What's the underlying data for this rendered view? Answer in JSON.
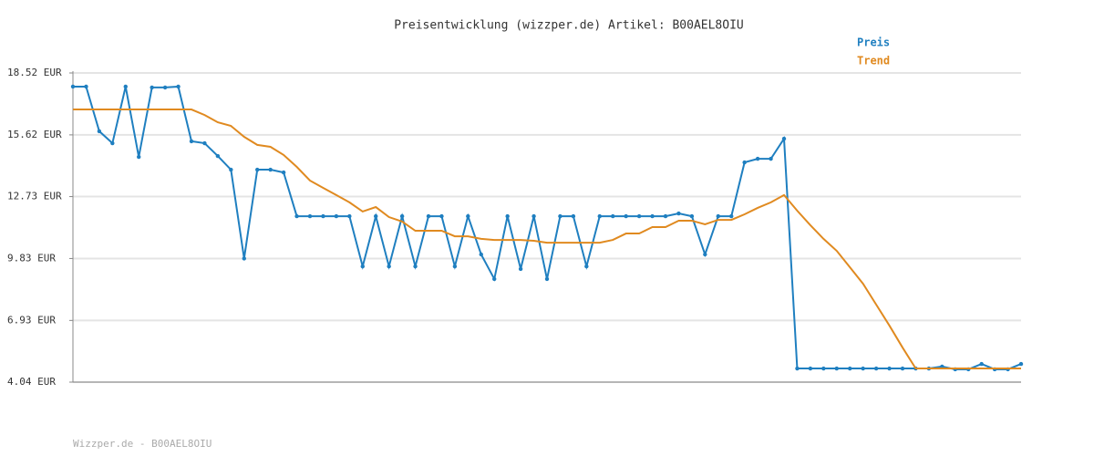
{
  "chart_data": {
    "type": "line",
    "title": "Preisentwicklung (wizzper.de) Artikel: B00AEL8OIU",
    "footer": "Wizzper.de - B00AEL8OIU",
    "ylim": [
      4.04,
      18.52
    ],
    "yticks": [
      {
        "value": 4.04,
        "label": "4.04 EUR"
      },
      {
        "value": 6.93,
        "label": "6.93 EUR"
      },
      {
        "value": 9.83,
        "label": "9.83 EUR"
      },
      {
        "value": 12.73,
        "label": "12.73 EUR"
      },
      {
        "value": 15.62,
        "label": "15.62 EUR"
      },
      {
        "value": 18.52,
        "label": "18.52 EUR"
      }
    ],
    "grid": true,
    "series": [
      {
        "name": "Preis",
        "color": "#1f7fc0",
        "markers": true,
        "values": [
          17.88,
          17.88,
          15.79,
          15.23,
          17.88,
          14.59,
          17.84,
          17.84,
          17.88,
          15.32,
          15.23,
          14.63,
          13.99,
          9.83,
          13.99,
          13.99,
          13.86,
          11.81,
          11.81,
          11.81,
          11.81,
          11.81,
          9.46,
          11.81,
          9.46,
          11.81,
          9.46,
          11.81,
          11.81,
          9.46,
          11.81,
          10.02,
          8.87,
          11.81,
          9.34,
          11.81,
          8.87,
          11.81,
          11.81,
          9.46,
          11.81,
          11.81,
          11.81,
          11.81,
          11.81,
          11.81,
          11.94,
          11.81,
          10.02,
          11.81,
          11.81,
          14.33,
          14.5,
          14.5,
          15.44,
          4.68,
          4.68,
          4.68,
          4.68,
          4.68,
          4.68,
          4.68,
          4.68,
          4.68,
          4.68,
          4.68,
          4.77,
          4.64,
          4.64,
          4.89,
          4.64,
          4.64,
          4.89
        ]
      },
      {
        "name": "Trend",
        "color": "#e08a20",
        "markers": false,
        "values": [
          16.81,
          16.81,
          16.81,
          16.81,
          16.81,
          16.81,
          16.81,
          16.81,
          16.81,
          16.81,
          16.55,
          16.21,
          16.04,
          15.53,
          15.15,
          15.06,
          14.68,
          14.12,
          13.48,
          13.14,
          12.8,
          12.46,
          12.03,
          12.24,
          11.77,
          11.56,
          11.13,
          11.13,
          11.13,
          10.87,
          10.87,
          10.75,
          10.7,
          10.7,
          10.7,
          10.66,
          10.57,
          10.57,
          10.57,
          10.57,
          10.57,
          10.7,
          11.0,
          11.0,
          11.3,
          11.3,
          11.6,
          11.6,
          11.43,
          11.64,
          11.64,
          11.9,
          12.2,
          12.46,
          12.8,
          12.07,
          11.39,
          10.75,
          10.19,
          9.42,
          8.65,
          7.67,
          6.69,
          5.66,
          4.68,
          4.68,
          4.68,
          4.68,
          4.68,
          4.68,
          4.68,
          4.68,
          4.68
        ]
      }
    ]
  }
}
